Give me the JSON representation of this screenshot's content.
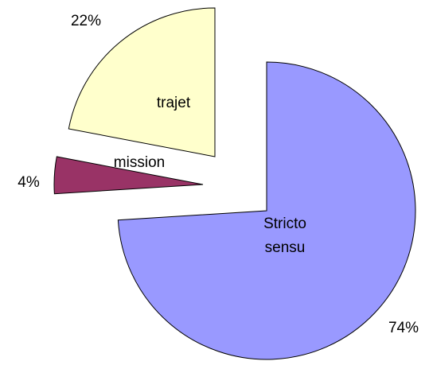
{
  "chart_data": {
    "type": "pie",
    "categories": [
      "Stricto sensu",
      "mission",
      "trajet"
    ],
    "values": [
      74,
      4,
      22
    ],
    "value_labels": [
      "74%",
      "4%",
      "22%"
    ],
    "colors": [
      "#9999ff",
      "#993366",
      "#ffffcc"
    ]
  }
}
